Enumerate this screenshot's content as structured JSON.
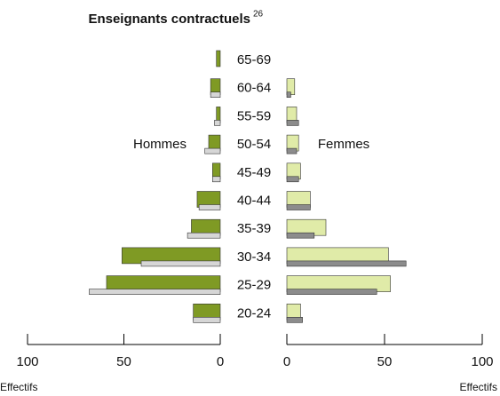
{
  "chart_data": {
    "type": "pyramid",
    "title": "Enseignants contractuels",
    "title_note": "26",
    "categories": [
      "65-69",
      "60-64",
      "55-59",
      "50-54",
      "45-49",
      "40-44",
      "35-39",
      "30-34",
      "25-29",
      "20-24"
    ],
    "groups": [
      {
        "name": "Hommes",
        "side": "left",
        "series": [
          {
            "color": "#7f9a24",
            "values": [
              2,
              5,
              2,
              6,
              4,
              12,
              15,
              51,
              59,
              14
            ]
          },
          {
            "color": "#d6d6d6",
            "values": [
              0,
              5,
              3,
              8,
              4,
              11,
              17,
              41,
              68,
              14
            ]
          }
        ]
      },
      {
        "name": "Femmes",
        "side": "right",
        "series": [
          {
            "color": "#e0eba8",
            "values": [
              0,
              4,
              5,
              6,
              7,
              12,
              20,
              52,
              53,
              7
            ]
          },
          {
            "color": "#8c8c8c",
            "values": [
              0,
              2,
              6,
              5,
              6,
              12,
              14,
              61,
              46,
              8
            ]
          }
        ]
      }
    ],
    "xlim": [
      0,
      100
    ],
    "xticks": [
      0,
      50,
      100
    ],
    "x_label": "Effectifs"
  }
}
